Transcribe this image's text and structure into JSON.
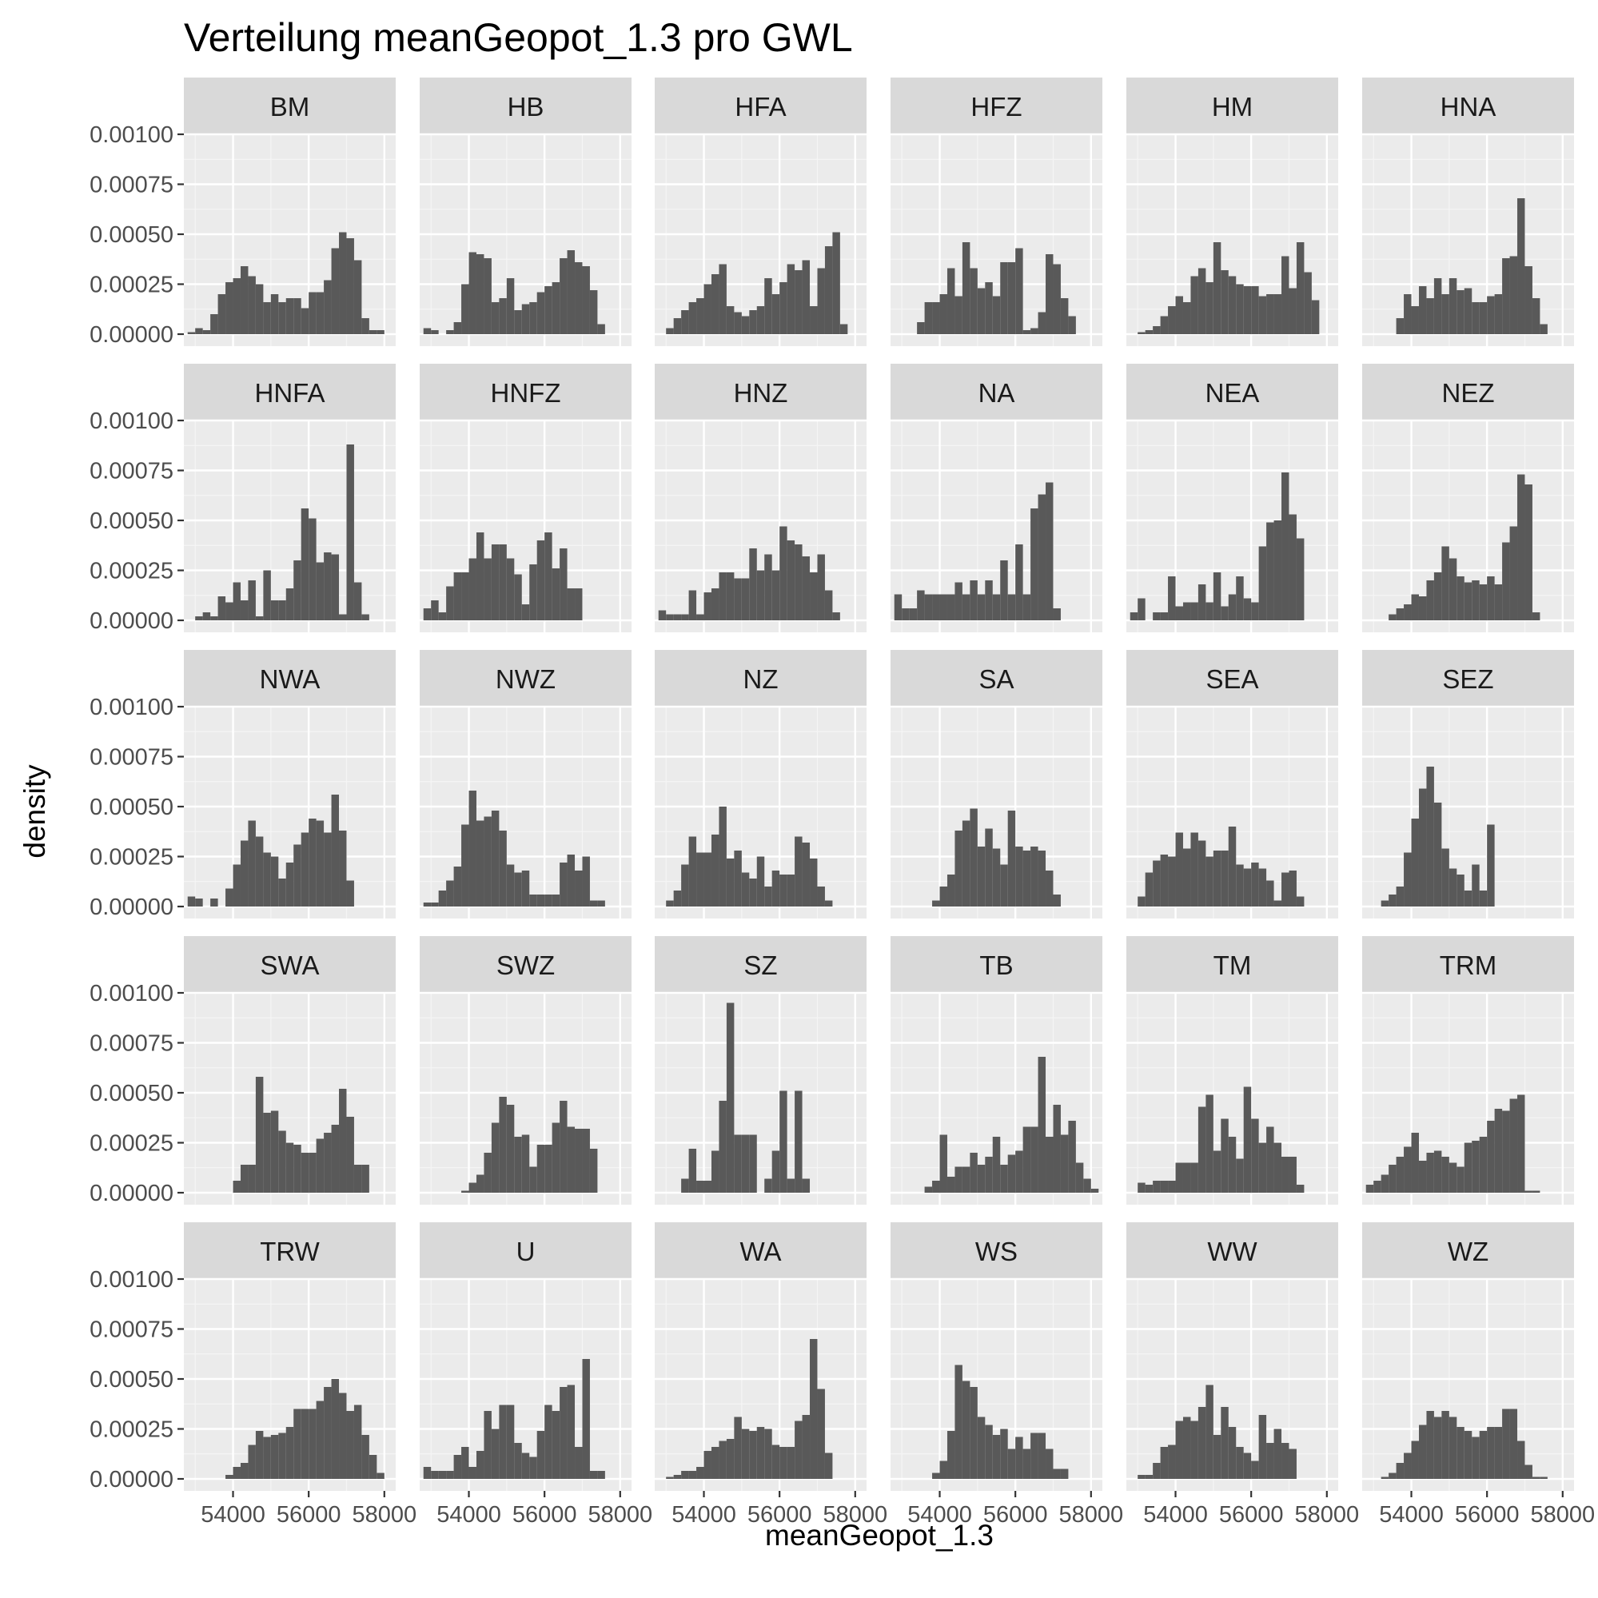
{
  "chart_data": {
    "type": "histogram",
    "title": "Verteilung meanGeopot_1.3 pro GWL",
    "xlabel": "meanGeopot_1.3",
    "ylabel": "density",
    "xlim": [
      52700,
      58300
    ],
    "ylim": [
      0,
      0.00105
    ],
    "x_ticks": [
      54000,
      56000,
      58000
    ],
    "y_ticks": [
      0,
      0.00025,
      0.0005,
      0.00075,
      0.001
    ],
    "y_tick_labels": [
      "0.00000",
      "0.00025",
      "0.00050",
      "0.00075",
      "0.00100"
    ],
    "x_tick_labels": [
      "54000",
      "56000",
      "58000"
    ],
    "bin_start": 52600,
    "bin_width": 200,
    "grid": true,
    "panel_background": "#EBEBEB",
    "strip_background": "#D9D9D9",
    "bar_color": "#595959",
    "facets": [
      {
        "label": "BM",
        "values": [
          0.0,
          1e-05,
          3e-05,
          2e-05,
          0.0001,
          0.0002,
          0.00026,
          0.00028,
          0.00034,
          0.00029,
          0.00025,
          0.00016,
          0.0002,
          0.00016,
          0.00018,
          0.00018,
          0.00013,
          0.00021,
          0.00021,
          0.00027,
          0.00043,
          0.00051,
          0.00048,
          0.00037,
          8e-05,
          2e-05,
          2e-05,
          0.0
        ]
      },
      {
        "label": "HB",
        "values": [
          0.0,
          3e-05,
          2e-05,
          0.0,
          2e-05,
          6e-05,
          0.00025,
          0.00041,
          0.0004,
          0.00038,
          0.00016,
          0.00018,
          0.00028,
          0.00012,
          0.00015,
          0.00016,
          0.00021,
          0.00024,
          0.00026,
          0.00038,
          0.00042,
          0.00036,
          0.00034,
          0.00022,
          5e-05,
          0.0,
          0.0,
          0.0
        ]
      },
      {
        "label": "HFA",
        "values": [
          0.0,
          0.0,
          3e-05,
          8e-05,
          0.00012,
          0.00016,
          0.00018,
          0.00025,
          0.0003,
          0.00035,
          0.00014,
          0.00011,
          9e-05,
          0.00012,
          0.00014,
          0.00028,
          0.0002,
          0.00026,
          0.00035,
          0.00032,
          0.00037,
          0.00014,
          0.00033,
          0.00044,
          0.00051,
          5e-05,
          0.0,
          0.0
        ]
      },
      {
        "label": "HFZ",
        "values": [
          0.0,
          0.0,
          0.0,
          0.0,
          6e-05,
          0.00016,
          0.00016,
          0.0002,
          0.00033,
          0.00019,
          0.00046,
          0.00033,
          0.00023,
          0.00026,
          0.00019,
          0.00036,
          0.00036,
          0.00043,
          2e-05,
          3e-05,
          0.00011,
          0.0004,
          0.00035,
          0.00018,
          9e-05,
          0.0,
          0.0,
          0.0
        ]
      },
      {
        "label": "HM",
        "values": [
          0.0,
          0.0,
          1e-05,
          2e-05,
          4e-05,
          9e-05,
          0.00014,
          0.00019,
          0.00016,
          0.00029,
          0.00033,
          0.00026,
          0.00046,
          0.00032,
          0.00029,
          0.00025,
          0.00024,
          0.00024,
          0.00019,
          0.0002,
          0.0002,
          0.00039,
          0.00023,
          0.00046,
          0.00031,
          0.00017,
          0.0,
          0.0
        ]
      },
      {
        "label": "HNA",
        "values": [
          0.0,
          0.0,
          0.0,
          0.0,
          0.0,
          8e-05,
          0.0002,
          0.00014,
          0.00024,
          0.00018,
          0.00028,
          0.0002,
          0.00028,
          0.00022,
          0.00023,
          0.00016,
          0.00016,
          0.00019,
          0.0002,
          0.00038,
          0.00039,
          0.00068,
          0.00034,
          0.00018,
          5e-05,
          0.0,
          0.0,
          0.0
        ]
      },
      {
        "label": "HNFA",
        "values": [
          0.0,
          0.0,
          2e-05,
          4e-05,
          2e-05,
          0.00012,
          9e-05,
          0.00019,
          0.0001,
          0.0002,
          2e-05,
          0.00025,
          0.0001,
          0.0001,
          0.00016,
          0.0003,
          0.00056,
          0.00051,
          0.00029,
          0.00034,
          0.00033,
          3e-05,
          0.00088,
          0.00019,
          3e-05,
          0.0,
          0.0,
          0.0
        ]
      },
      {
        "label": "HNFZ",
        "values": [
          0.0,
          6e-05,
          0.0001,
          4e-05,
          0.00017,
          0.00024,
          0.00024,
          0.00031,
          0.00044,
          0.00031,
          0.00038,
          0.00038,
          0.00031,
          0.00023,
          8e-05,
          0.00028,
          0.0004,
          0.00044,
          0.00026,
          0.00036,
          0.00016,
          0.00016,
          0.0,
          0.0,
          0.0,
          0.0,
          0.0,
          0.0
        ]
      },
      {
        "label": "HNZ",
        "values": [
          0.0,
          5e-05,
          3e-05,
          3e-05,
          3e-05,
          0.00015,
          3e-05,
          0.00014,
          0.00016,
          0.00024,
          0.00024,
          0.00021,
          0.00021,
          0.00036,
          0.00025,
          0.00033,
          0.00025,
          0.00047,
          0.0004,
          0.00038,
          0.00032,
          0.00024,
          0.00033,
          0.00015,
          4e-05,
          0.0,
          0.0,
          0.0
        ]
      },
      {
        "label": "NA",
        "values": [
          0.0,
          0.00013,
          6e-05,
          6e-05,
          0.00015,
          0.00013,
          0.00013,
          0.00013,
          0.00013,
          0.00019,
          0.00013,
          0.0002,
          0.00013,
          0.0002,
          0.00013,
          0.0003,
          0.00013,
          0.00038,
          0.00013,
          0.00056,
          0.00063,
          0.00069,
          6e-05,
          0.0,
          0.0,
          0.0,
          0.0,
          0.0
        ]
      },
      {
        "label": "NEA",
        "values": [
          0.0,
          4e-05,
          0.00011,
          0.0,
          4e-05,
          4e-05,
          0.00022,
          7e-05,
          9e-05,
          9e-05,
          0.00018,
          9e-05,
          0.00024,
          7e-05,
          0.00013,
          0.00022,
          0.00011,
          9e-05,
          0.00037,
          0.00049,
          0.0005,
          0.00074,
          0.00053,
          0.00041,
          0.0,
          0.0,
          0.0,
          0.0
        ]
      },
      {
        "label": "NEZ",
        "values": [
          0.0,
          0.0,
          0.0,
          0.0,
          3e-05,
          6e-05,
          8e-05,
          0.00013,
          0.00012,
          0.0002,
          0.00024,
          0.00037,
          0.00031,
          0.00022,
          0.00019,
          0.0002,
          0.00018,
          0.00022,
          0.00018,
          0.00039,
          0.00047,
          0.00073,
          0.00068,
          4e-05,
          0.0,
          0.0,
          0.0,
          0.0
        ]
      },
      {
        "label": "NWA",
        "values": [
          0.0,
          5e-05,
          4e-05,
          0.0,
          4e-05,
          0.0,
          9e-05,
          0.00021,
          0.00033,
          0.00043,
          0.00035,
          0.00027,
          0.00025,
          0.00014,
          0.00022,
          0.00031,
          0.00037,
          0.00044,
          0.00043,
          0.00037,
          0.00056,
          0.00038,
          0.00013,
          0.0,
          0.0,
          0.0,
          0.0,
          0.0
        ]
      },
      {
        "label": "NWZ",
        "values": [
          0.0,
          2e-05,
          2e-05,
          8e-05,
          0.00013,
          0.0002,
          0.00041,
          0.00058,
          0.00043,
          0.00045,
          0.00048,
          0.00038,
          0.00021,
          0.00017,
          0.00018,
          6e-05,
          6e-05,
          6e-05,
          6e-05,
          0.00022,
          0.00026,
          0.00018,
          0.00025,
          3e-05,
          3e-05,
          0.0,
          0.0,
          0.0
        ]
      },
      {
        "label": "NZ",
        "values": [
          0.0,
          0.0,
          3e-05,
          8e-05,
          0.00021,
          0.00035,
          0.00027,
          0.00027,
          0.00036,
          0.0005,
          0.00024,
          0.00028,
          0.00017,
          0.00014,
          0.00025,
          0.0001,
          0.00018,
          0.00016,
          0.00016,
          0.00035,
          0.00032,
          0.00024,
          0.0001,
          3e-05,
          0.0,
          0.0,
          0.0,
          0.0
        ]
      },
      {
        "label": "SA",
        "values": [
          0.0,
          0.0,
          0.0,
          0.0,
          0.0,
          0.0,
          3e-05,
          0.0001,
          0.00016,
          0.00038,
          0.00043,
          0.00049,
          0.0003,
          0.00039,
          0.00029,
          0.00021,
          0.00048,
          0.0003,
          0.00028,
          0.0003,
          0.00028,
          0.00018,
          6e-05,
          0.0,
          0.0,
          0.0,
          0.0,
          0.0
        ]
      },
      {
        "label": "SEA",
        "values": [
          0.0,
          0.0,
          5e-05,
          0.00017,
          0.00023,
          0.00026,
          0.00025,
          0.00037,
          0.00029,
          0.00037,
          0.00033,
          0.00025,
          0.00028,
          0.00028,
          0.0004,
          0.00021,
          0.00019,
          0.00022,
          0.00019,
          0.00013,
          3e-05,
          0.00017,
          0.00018,
          5e-05,
          0.0,
          0.0,
          0.0,
          0.0
        ]
      },
      {
        "label": "SEZ",
        "values": [
          0.0,
          0.0,
          0.0,
          3e-05,
          6e-05,
          0.0001,
          0.00027,
          0.00044,
          0.00059,
          0.0007,
          0.00052,
          0.00029,
          0.00019,
          0.00016,
          8e-05,
          0.00021,
          8e-05,
          0.00041,
          0.0,
          0.0,
          0.0,
          0.0,
          0.0,
          0.0,
          0.0,
          0.0,
          0.0,
          0.0
        ]
      },
      {
        "label": "SWA",
        "values": [
          0.0,
          0.0,
          0.0,
          0.0,
          0.0,
          0.0,
          0.0,
          6e-05,
          0.00014,
          0.00014,
          0.00058,
          0.0004,
          0.00041,
          0.00031,
          0.00025,
          0.00024,
          0.0002,
          0.0002,
          0.00027,
          0.0003,
          0.00034,
          0.00052,
          0.00038,
          0.00014,
          0.00014,
          0.0,
          0.0,
          0.0
        ]
      },
      {
        "label": "SWZ",
        "values": [
          0.0,
          0.0,
          0.0,
          0.0,
          0.0,
          0.0,
          1e-05,
          5e-05,
          9e-05,
          0.0002,
          0.00035,
          0.00048,
          0.00044,
          0.00028,
          0.00029,
          0.00013,
          0.00024,
          0.00024,
          0.00035,
          0.00046,
          0.00033,
          0.00032,
          0.00032,
          0.00022,
          0.0,
          0.0,
          0.0,
          0.0
        ]
      },
      {
        "label": "SZ",
        "values": [
          0.0,
          0.0,
          0.0,
          0.0,
          7e-05,
          0.00022,
          6e-05,
          6e-05,
          0.00021,
          0.00046,
          0.00095,
          0.00029,
          0.00029,
          0.00029,
          0.0,
          7e-05,
          0.00021,
          0.00051,
          7e-05,
          0.00051,
          7e-05,
          0.0,
          0.0,
          0.0,
          0.0,
          0.0,
          0.0,
          0.0
        ]
      },
      {
        "label": "TB",
        "values": [
          0.0,
          0.0,
          0.0,
          0.0,
          0.0,
          3e-05,
          6e-05,
          0.00029,
          8e-05,
          0.00013,
          0.00013,
          0.0002,
          0.00014,
          0.00018,
          0.00028,
          0.00014,
          0.00019,
          0.00021,
          0.00033,
          0.00033,
          0.00068,
          0.00028,
          0.00044,
          0.00029,
          0.00036,
          0.00015,
          7e-05,
          2e-05
        ]
      },
      {
        "label": "TM",
        "values": [
          0.0,
          0.0,
          5e-05,
          4e-05,
          6e-05,
          6e-05,
          6e-05,
          0.00015,
          0.00015,
          0.00015,
          0.00043,
          0.00049,
          0.00021,
          0.00037,
          0.00028,
          0.00017,
          0.00053,
          0.00037,
          0.00025,
          0.00033,
          0.00025,
          0.00018,
          0.00018,
          4e-05,
          0.0,
          0.0,
          0.0,
          0.0
        ]
      },
      {
        "label": "TRM",
        "values": [
          0.0,
          4e-05,
          6e-05,
          9e-05,
          0.00014,
          0.00018,
          0.00023,
          0.0003,
          0.00016,
          0.0002,
          0.00021,
          0.00018,
          0.00015,
          0.00013,
          0.00025,
          0.00026,
          0.00028,
          0.00036,
          0.00042,
          0.00041,
          0.00047,
          0.00049,
          1e-05,
          1e-05,
          0.0,
          0.0,
          0.0,
          0.0
        ]
      },
      {
        "label": "TRW",
        "values": [
          0.0,
          0.0,
          0.0,
          0.0,
          0.0,
          0.0,
          2e-05,
          6e-05,
          8e-05,
          0.00017,
          0.00024,
          0.00021,
          0.00022,
          0.00023,
          0.00026,
          0.00035,
          0.00035,
          0.00035,
          0.00039,
          0.00046,
          0.0005,
          0.00043,
          0.00034,
          0.00037,
          0.00022,
          0.00012,
          3e-05,
          0.0
        ]
      },
      {
        "label": "U",
        "values": [
          0.0,
          6e-05,
          4e-05,
          4e-05,
          4e-05,
          0.00012,
          0.00016,
          6e-05,
          0.00014,
          0.00034,
          0.00025,
          0.00037,
          0.00037,
          0.00018,
          0.00013,
          0.00011,
          0.00024,
          0.00037,
          0.00034,
          0.00046,
          0.00047,
          0.00016,
          0.0006,
          4e-05,
          4e-05,
          0.0,
          0.0,
          0.0
        ]
      },
      {
        "label": "WA",
        "values": [
          0.0,
          0.0,
          1e-05,
          2e-05,
          4e-05,
          4e-05,
          6e-05,
          0.00014,
          0.00016,
          0.00019,
          0.0002,
          0.00031,
          0.00025,
          0.00024,
          0.00026,
          0.00025,
          0.00017,
          0.00016,
          0.00016,
          0.00029,
          0.00032,
          0.0007,
          0.00045,
          0.00013,
          0.0,
          0.0,
          0.0,
          0.0
        ]
      },
      {
        "label": "WS",
        "values": [
          0.0,
          0.0,
          0.0,
          0.0,
          0.0,
          0.0,
          3e-05,
          9e-05,
          0.00024,
          0.00057,
          0.00049,
          0.00046,
          0.00031,
          0.00027,
          0.00022,
          0.00025,
          0.00015,
          0.00021,
          0.00015,
          0.00023,
          0.00023,
          0.00015,
          5e-05,
          5e-05,
          0.0,
          0.0,
          0.0,
          0.0
        ]
      },
      {
        "label": "WW",
        "values": [
          0.0,
          0.0,
          2e-05,
          2e-05,
          8e-05,
          0.00016,
          0.00017,
          0.00029,
          0.00031,
          0.00029,
          0.00036,
          0.00047,
          0.00022,
          0.00036,
          0.00026,
          0.00016,
          0.00013,
          9e-05,
          0.00032,
          0.00018,
          0.00025,
          0.00018,
          0.00015,
          0.0,
          0.0,
          0.0,
          0.0,
          0.0
        ]
      },
      {
        "label": "WZ",
        "values": [
          0.0,
          0.0,
          0.0,
          1e-05,
          3e-05,
          8e-05,
          0.00013,
          0.00019,
          0.00027,
          0.00034,
          0.00031,
          0.00034,
          0.00031,
          0.00026,
          0.00024,
          0.00021,
          0.00024,
          0.00026,
          0.00026,
          0.00035,
          0.00035,
          0.00019,
          7e-05,
          1e-05,
          1e-05,
          0.0,
          0.0,
          0.0
        ]
      }
    ]
  }
}
